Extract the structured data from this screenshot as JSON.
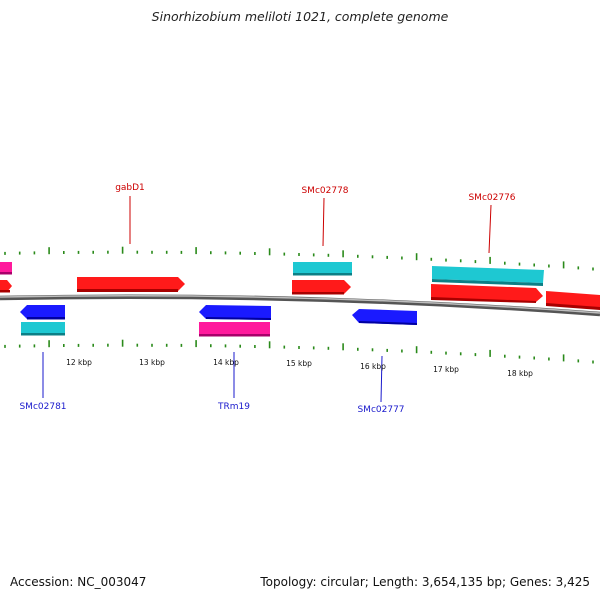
{
  "title": "Sinorhizobium meliloti 1021, complete genome",
  "footer": {
    "accession": "Accession: NC_003047",
    "summary": "Topology: circular; Length: 3,654,135 bp; Genes: 3,425"
  },
  "colors": {
    "cds_forward": "#ff1a1a",
    "gene_forward": "#1ec8d2",
    "cds_reverse": "#1a1aff",
    "rna": "#ff1a9c",
    "label_forward": "#cc0000",
    "label_reverse": "#1a1acc",
    "tick": "#2a8a1a",
    "backbone": "#7a7a7a"
  },
  "tick_labels": [
    "12 kbp",
    "13 kbp",
    "14 kbp",
    "15 kbp",
    "16 kbp",
    "17 kbp",
    "18 kbp"
  ],
  "gene_labels": {
    "gabD1": "gabD1",
    "SMc02778": "SMc02778",
    "SMc02776": "SMc02776",
    "SMc02781": "SMc02781",
    "TRm19": "TRm19",
    "SMc02777": "SMc02777"
  }
}
